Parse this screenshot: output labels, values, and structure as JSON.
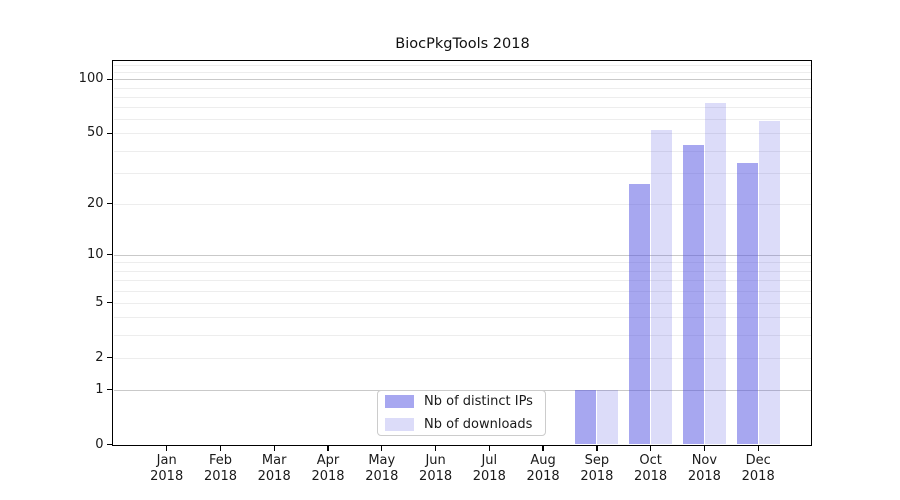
{
  "title": "BiocPkgTools 2018",
  "colors": {
    "bar_distinct_ips": "rgba(80,80,225,0.5)",
    "bar_downloads": "rgba(80,80,225,0.2)",
    "grid_major": "#c9c9c9",
    "grid_minor": "#ededed",
    "axis": "#000000",
    "text": "#1a1a1a",
    "legend_border": "#cccccc"
  },
  "legend": {
    "items": [
      {
        "label": "Nb of distinct IPs"
      },
      {
        "label": "Nb of downloads"
      }
    ],
    "position": "lower center, inside axes"
  },
  "chart_data": {
    "type": "bar",
    "title": "BiocPkgTools 2018",
    "categories": [
      "Jan 2018",
      "Feb 2018",
      "Mar 2018",
      "Apr 2018",
      "May 2018",
      "Jun 2018",
      "Jul 2018",
      "Aug 2018",
      "Sep 2018",
      "Oct 2018",
      "Nov 2018",
      "Dec 2018"
    ],
    "series": [
      {
        "name": "Nb of distinct IPs",
        "color": "rgba(80,80,225,0.5)",
        "values": [
          0,
          0,
          0,
          0,
          0,
          0,
          0,
          0,
          1,
          26,
          43,
          34
        ]
      },
      {
        "name": "Nb of downloads",
        "color": "rgba(80,80,225,0.2)",
        "values": [
          0,
          0,
          0,
          0,
          0,
          0,
          0,
          0,
          1,
          52,
          74,
          59
        ]
      }
    ],
    "xlabel": "",
    "ylabel": "",
    "yscale": "log1p",
    "ylim": [
      0,
      128
    ],
    "y_ticks": [
      0,
      1,
      2,
      5,
      10,
      20,
      50,
      100
    ],
    "y_tick_labels": [
      "0",
      "1",
      "2",
      "5",
      "10",
      "20",
      "50",
      "100"
    ],
    "y_major_gridlines": [
      1,
      10,
      100
    ],
    "y_minor_gridlines": [
      2,
      3,
      4,
      5,
      6,
      7,
      8,
      9,
      20,
      30,
      40,
      50,
      60,
      70,
      80,
      90,
      110,
      120
    ],
    "grid": "horizontal major+minor",
    "legend_position": "inside lower-center"
  }
}
